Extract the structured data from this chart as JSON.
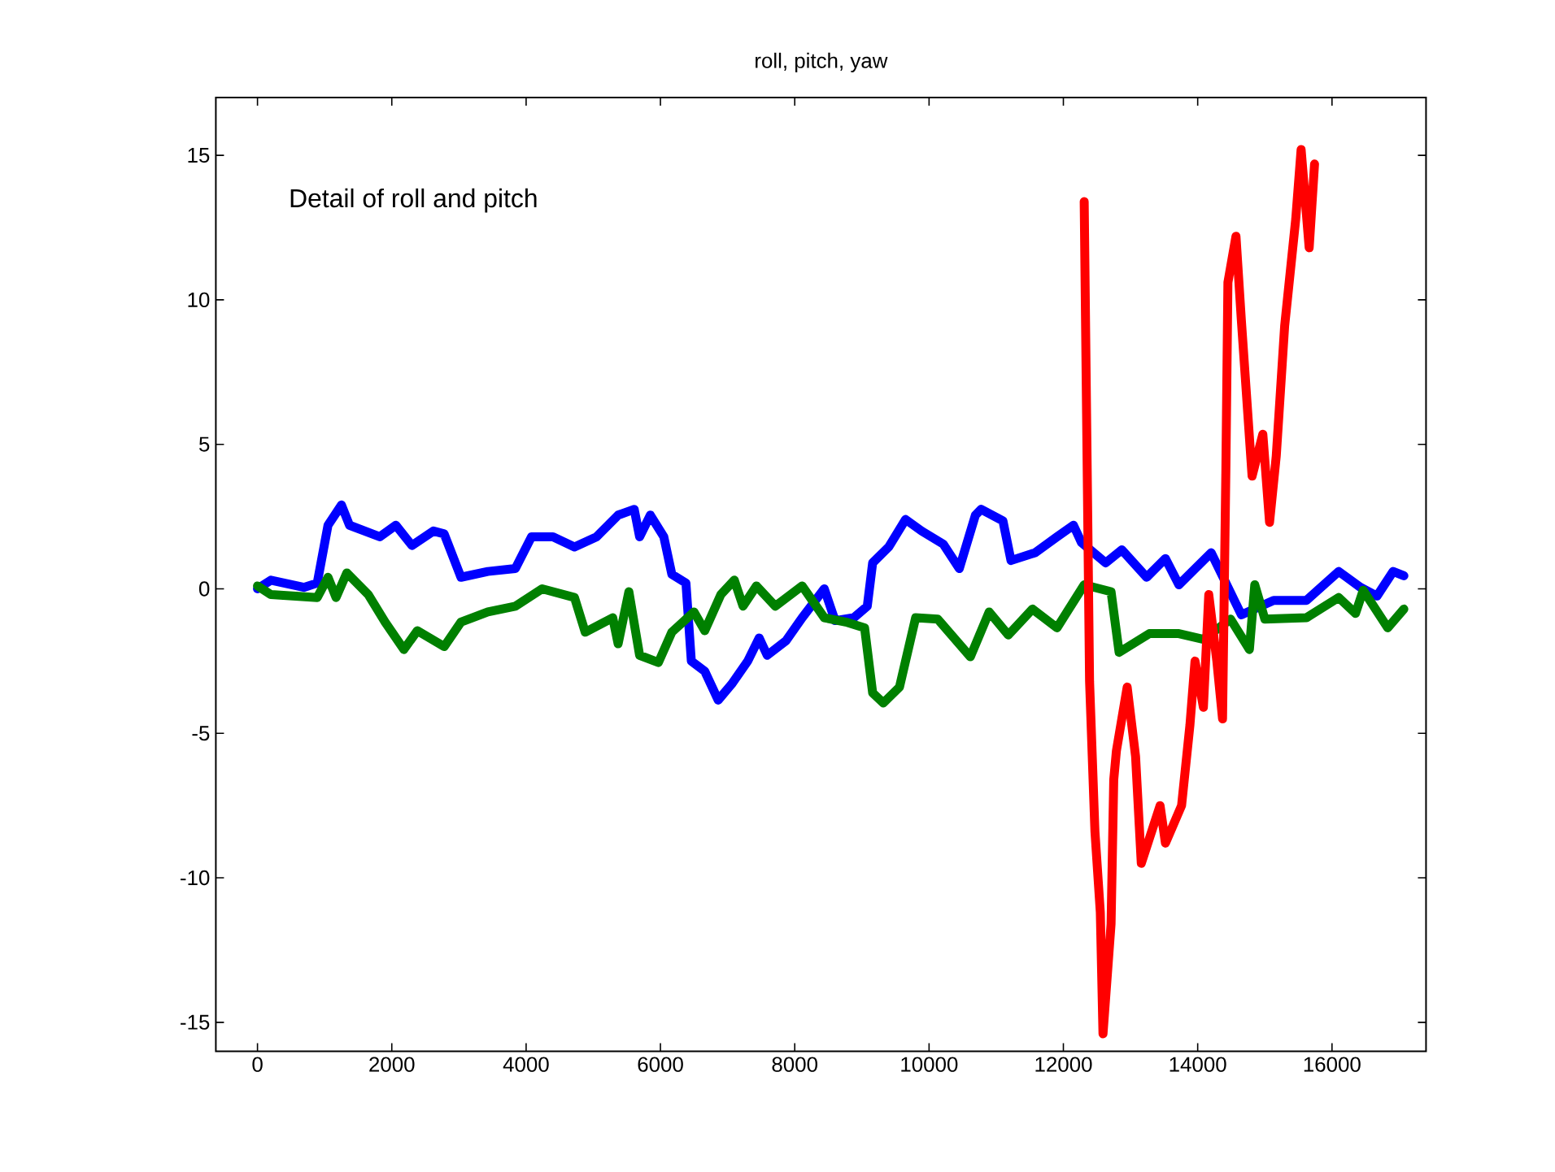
{
  "chart_data": {
    "type": "line",
    "title": "roll, pitch, yaw",
    "annotations": [
      "Detail of roll and pitch"
    ],
    "xlim": [
      -620,
      17400
    ],
    "ylim": [
      -16,
      17
    ],
    "xticks": [
      0,
      2000,
      4000,
      6000,
      8000,
      10000,
      12000,
      14000,
      16000
    ],
    "yticks": [
      -15,
      -10,
      -5,
      0,
      5,
      10,
      15
    ],
    "grid": false,
    "line_style": "solid",
    "series": [
      {
        "color": "#0000ff",
        "x": [
          0,
          200,
          690,
          890,
          1050,
          1250,
          1370,
          1820,
          2060,
          2300,
          2620,
          2780,
          3030,
          3430,
          3840,
          4080,
          4400,
          4720,
          5050,
          5370,
          5610,
          5690,
          5850,
          6050,
          6170,
          6380,
          6460,
          6660,
          6860,
          7060,
          7300,
          7470,
          7590,
          7870,
          8110,
          8440,
          8600,
          8880,
          9080,
          9160,
          9400,
          9650,
          9890,
          10210,
          10450,
          10690,
          10775,
          11100,
          11220,
          11580,
          11905,
          12150,
          12270,
          12630,
          12870,
          13240,
          13520,
          13720,
          14200,
          14650,
          15130,
          15620,
          16100,
          16425,
          16670,
          16910,
          17070
        ],
        "values": [
          0,
          0.3,
          0.05,
          0.2,
          2.2,
          2.9,
          2.2,
          1.8,
          2.2,
          1.5,
          2.0,
          1.9,
          0.4,
          0.6,
          0.7,
          1.8,
          1.8,
          1.45,
          1.8,
          2.55,
          2.75,
          1.8,
          2.55,
          1.8,
          0.5,
          0.2,
          -2.5,
          -2.85,
          -3.85,
          -3.3,
          -2.5,
          -1.7,
          -2.3,
          -1.8,
          -1.0,
          0,
          -1.1,
          -1.0,
          -0.6,
          0.9,
          1.45,
          2.4,
          2.0,
          1.55,
          0.7,
          2.55,
          2.75,
          2.35,
          0.98,
          1.25,
          1.8,
          2.2,
          1.6,
          0.9,
          1.35,
          0.4,
          1.05,
          0.14,
          1.25,
          -0.9,
          -0.4,
          -0.4,
          0.6,
          0.05,
          -0.25,
          0.6,
          0.45
        ]
      },
      {
        "color": "#008000",
        "x": [
          0,
          200,
          890,
          1050,
          1170,
          1330,
          1650,
          1900,
          2180,
          2380,
          2780,
          3030,
          3430,
          3840,
          4240,
          4720,
          4880,
          5290,
          5370,
          5530,
          5690,
          5970,
          6170,
          6500,
          6660,
          6900,
          7100,
          7230,
          7430,
          7710,
          8110,
          8440,
          8760,
          9040,
          9160,
          9320,
          9560,
          9800,
          10130,
          10615,
          10895,
          11180,
          11540,
          11905,
          12310,
          12710,
          12830,
          13280,
          13720,
          14085,
          14490,
          14770,
          14850,
          15000,
          15620,
          16100,
          16350,
          16465,
          16830,
          17070
        ],
        "values": [
          0.1,
          -0.2,
          -0.3,
          0.4,
          -0.3,
          0.55,
          -0.2,
          -1.15,
          -2.1,
          -1.45,
          -2.0,
          -1.15,
          -0.8,
          -0.6,
          0,
          -0.3,
          -1.5,
          -1.0,
          -1.9,
          -0.1,
          -2.3,
          -2.55,
          -1.5,
          -0.8,
          -1.45,
          -0.2,
          0.3,
          -0.6,
          0.1,
          -0.6,
          0.1,
          -1.0,
          -1.15,
          -1.35,
          -3.6,
          -3.95,
          -3.4,
          -1.0,
          -1.05,
          -2.35,
          -0.8,
          -1.6,
          -0.7,
          -1.35,
          0.14,
          -0.1,
          -2.2,
          -1.55,
          -1.55,
          -1.75,
          -1.05,
          -2.1,
          0.14,
          -1.05,
          -1.0,
          -0.3,
          -0.85,
          -0.05,
          -1.35,
          -0.7
        ]
      },
      {
        "color": "#ff0000",
        "x": [
          12310,
          12390,
          12470,
          12550,
          12590,
          12710,
          12750,
          12790,
          12950,
          13075,
          13160,
          13440,
          13520,
          13760,
          13885,
          13960,
          14085,
          14165,
          14285,
          14370,
          14420,
          14450,
          14570,
          14650,
          14810,
          14970,
          15070,
          15170,
          15295,
          15460,
          15540,
          15660,
          15740
        ],
        "values": [
          13.4,
          -3.2,
          -8.4,
          -11.2,
          -15.4,
          -11.6,
          -6.6,
          -5.6,
          -3.4,
          -5.8,
          -9.5,
          -7.5,
          -8.8,
          -7.5,
          -4.7,
          -2.5,
          -4.1,
          -0.2,
          -2.5,
          -4.5,
          4.2,
          10.6,
          12.2,
          9.3,
          3.9,
          5.35,
          2.3,
          4.6,
          9.1,
          12.8,
          15.2,
          11.8,
          14.7
        ]
      }
    ]
  }
}
